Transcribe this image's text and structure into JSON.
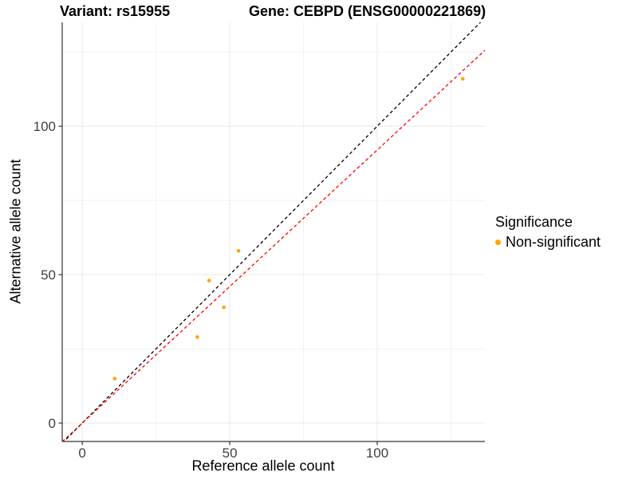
{
  "chart_data": {
    "type": "scatter",
    "title_left": "Variant: rs15955",
    "title_right": "Gene: CEBPD (ENSG00000221869)",
    "xlabel": "Reference allele count",
    "ylabel": "Alternative allele count",
    "series": [
      {
        "name": "Non-significant",
        "color": "#FFA500",
        "x": [
          11,
          39,
          43,
          48,
          53,
          129
        ],
        "y": [
          15,
          29,
          48,
          39,
          58,
          116
        ]
      }
    ],
    "lines": [
      {
        "name": "identity-line",
        "slope": 1.0,
        "intercept": 0,
        "color": "#000000",
        "style": "dashed"
      },
      {
        "name": "fit-line",
        "slope": 0.92,
        "intercept": 0,
        "color": "#FF0000",
        "style": "dashed"
      }
    ],
    "x_ticks": [
      0,
      50,
      100
    ],
    "y_ticks": [
      0,
      50,
      100
    ],
    "x_minor_ticks": [
      25,
      75,
      125
    ],
    "y_minor_ticks": [
      25,
      75,
      125
    ],
    "xlim": [
      -6.8,
      136.5
    ],
    "ylim": [
      -6.2,
      135.0
    ],
    "grid": "on",
    "legend": {
      "position": "right",
      "title": "Significance",
      "items": [
        {
          "label": "Non-significant",
          "color": "#FFA500"
        }
      ]
    },
    "colors": {
      "point": "#FFA500",
      "identity_line": "#000000",
      "fit_line": "#FF0000",
      "grid_major": "#E8E8E8",
      "grid_minor": "#F2F2F2",
      "axis_line": "#333333",
      "tick_text": "#404040"
    }
  }
}
